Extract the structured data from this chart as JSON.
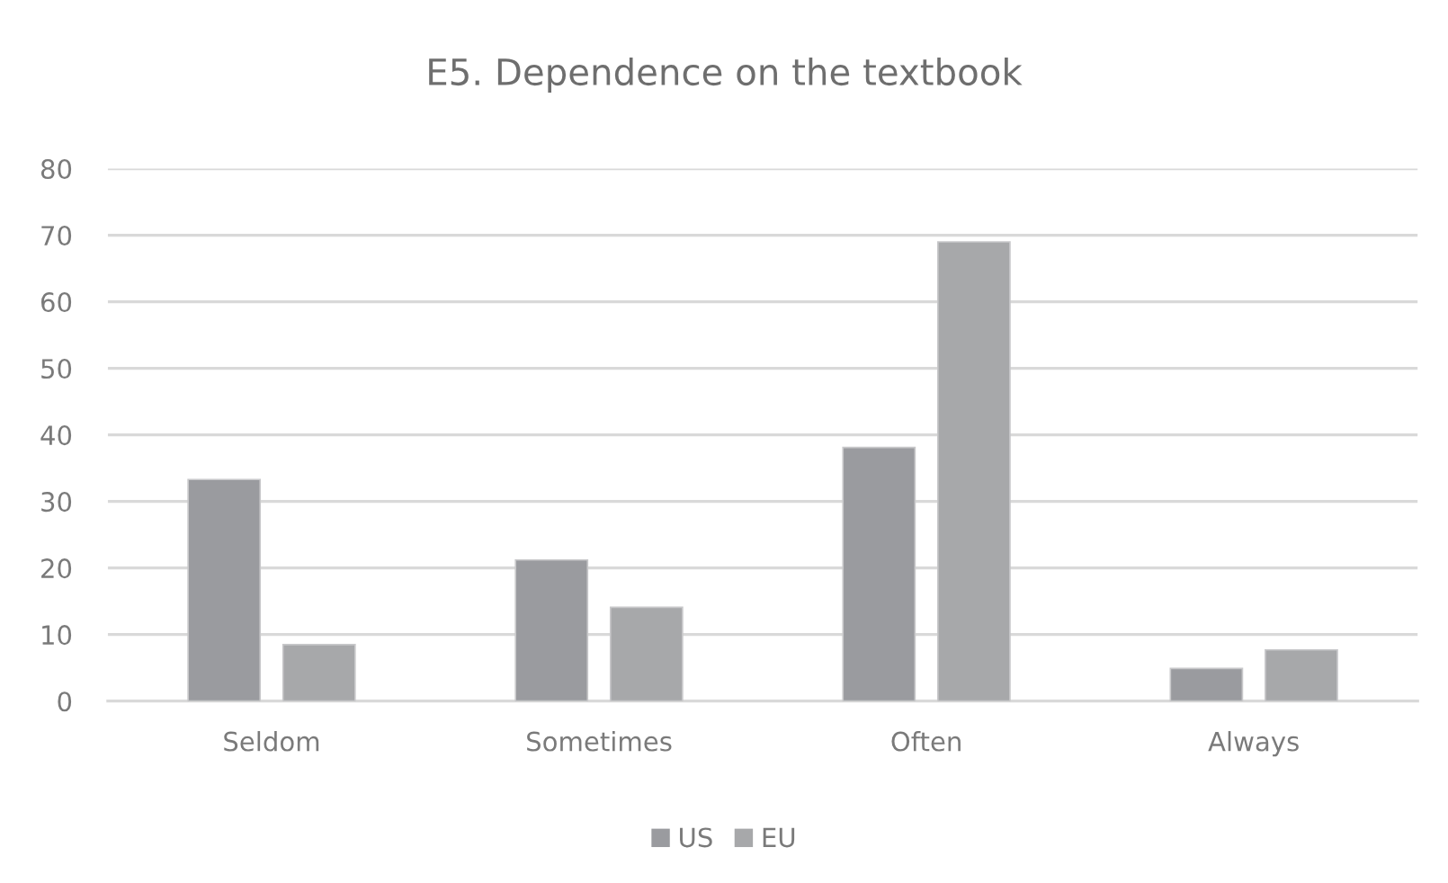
{
  "chart_data": {
    "type": "bar",
    "title": "E5. Dependence on the textbook",
    "categories": [
      "Seldom",
      "Sometimes",
      "Often",
      "Always"
    ],
    "series": [
      {
        "name": "US",
        "color": "#9a9b9f",
        "values": [
          33.3,
          21.2,
          38.1,
          4.9
        ]
      },
      {
        "name": "EU",
        "color": "#a7a8aa",
        "values": [
          8.5,
          14.1,
          69.0,
          7.7
        ]
      }
    ],
    "ylim": [
      0,
      80
    ],
    "yticks": [
      0,
      10,
      20,
      30,
      40,
      50,
      60,
      70,
      80
    ],
    "grid": "y",
    "legend": "bottom"
  }
}
